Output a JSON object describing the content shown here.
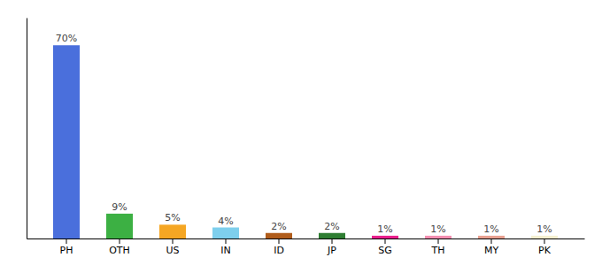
{
  "chart_data": {
    "type": "bar",
    "categories": [
      "PH",
      "OTH",
      "US",
      "IN",
      "ID",
      "JP",
      "SG",
      "TH",
      "MY",
      "PK"
    ],
    "values": [
      70,
      9,
      5,
      4,
      2,
      2,
      1,
      1,
      1,
      1
    ],
    "value_labels": [
      "70%",
      "9%",
      "5%",
      "4%",
      "2%",
      "2%",
      "1%",
      "1%",
      "1%",
      "1%"
    ],
    "colors": [
      "#4a6fdc",
      "#3cb043",
      "#f5a623",
      "#7ecfed",
      "#b05c1a",
      "#2e7d32",
      "#e91e8c",
      "#f48fb1",
      "#e8a090",
      "#f5f0d0"
    ],
    "ylim": [
      0,
      80
    ],
    "data_labels": true,
    "tick_labels": "x",
    "grid": false
  }
}
